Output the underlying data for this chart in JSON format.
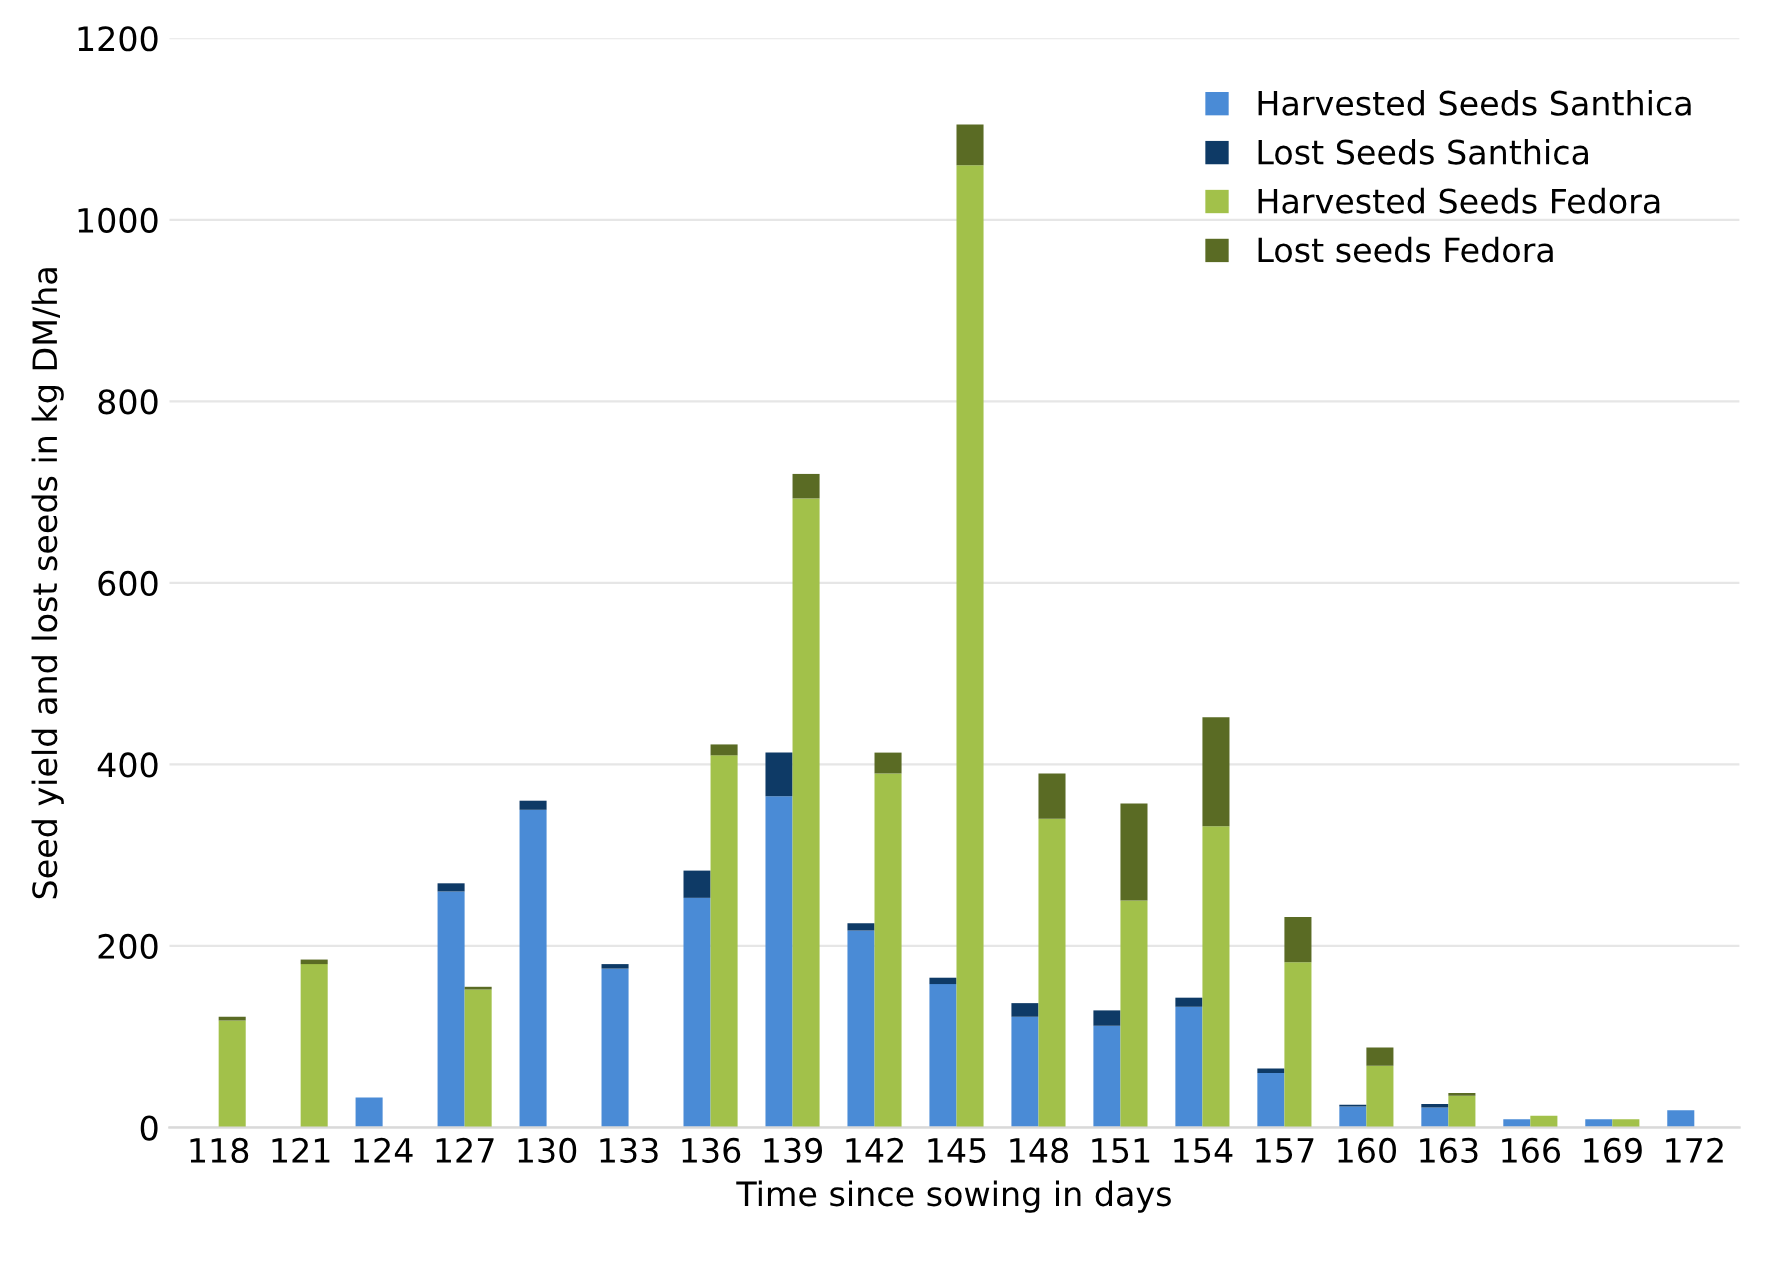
{
  "chart_data": [
    {
      "type": "bar",
      "stacked": true,
      "xlabel": "Time since sowing in days",
      "ylabel": "Seed yield and lost seeds in kg DM/ha",
      "categories": [
        "118",
        "121",
        "124",
        "127",
        "130",
        "133",
        "136",
        "139",
        "142",
        "145",
        "148",
        "151",
        "154",
        "157",
        "160",
        "163",
        "166",
        "169",
        "172"
      ],
      "series": [
        {
          "name": "Harvested Seeds Santhica",
          "color": "#4a8bd6",
          "values": [
            0,
            0,
            33,
            260,
            350,
            175,
            253,
            365,
            217,
            158,
            122,
            112,
            133,
            60,
            23,
            22,
            9,
            9,
            19
          ]
        },
        {
          "name": "Lost Seeds Santhica",
          "color": "#0e3a66",
          "values": [
            0,
            0,
            0,
            9,
            10,
            5,
            30,
            48,
            8,
            7,
            15,
            17,
            10,
            5,
            2,
            4,
            0,
            0,
            0
          ]
        }
      ],
      "ylim": [
        0,
        1200
      ],
      "yticks": [
        0,
        200,
        400,
        600,
        800,
        1000,
        1200
      ],
      "grid": "y",
      "legend": "top right"
    },
    {
      "type": "bar",
      "stacked": true,
      "categories": [
        "118",
        "121",
        "124",
        "127",
        "130",
        "133",
        "136",
        "139",
        "142",
        "145",
        "148",
        "151",
        "154",
        "157",
        "160",
        "163",
        "166",
        "169",
        "172"
      ],
      "series": [
        {
          "name": "Harvested Seeds Fedora",
          "color": "#a2c14a",
          "values": [
            118,
            180,
            0,
            152,
            0,
            0,
            410,
            693,
            390,
            1060,
            340,
            250,
            332,
            182,
            68,
            35,
            13,
            9,
            0
          ]
        },
        {
          "name": "Lost seeds Fedora",
          "color": "#5a6b24",
          "values": [
            4,
            5,
            0,
            3,
            0,
            0,
            12,
            27,
            23,
            45,
            50,
            107,
            120,
            50,
            20,
            3,
            0,
            0,
            0
          ]
        }
      ],
      "ylim": [
        0,
        1200
      ],
      "tick_labels": false,
      "legend": "top right"
    }
  ]
}
